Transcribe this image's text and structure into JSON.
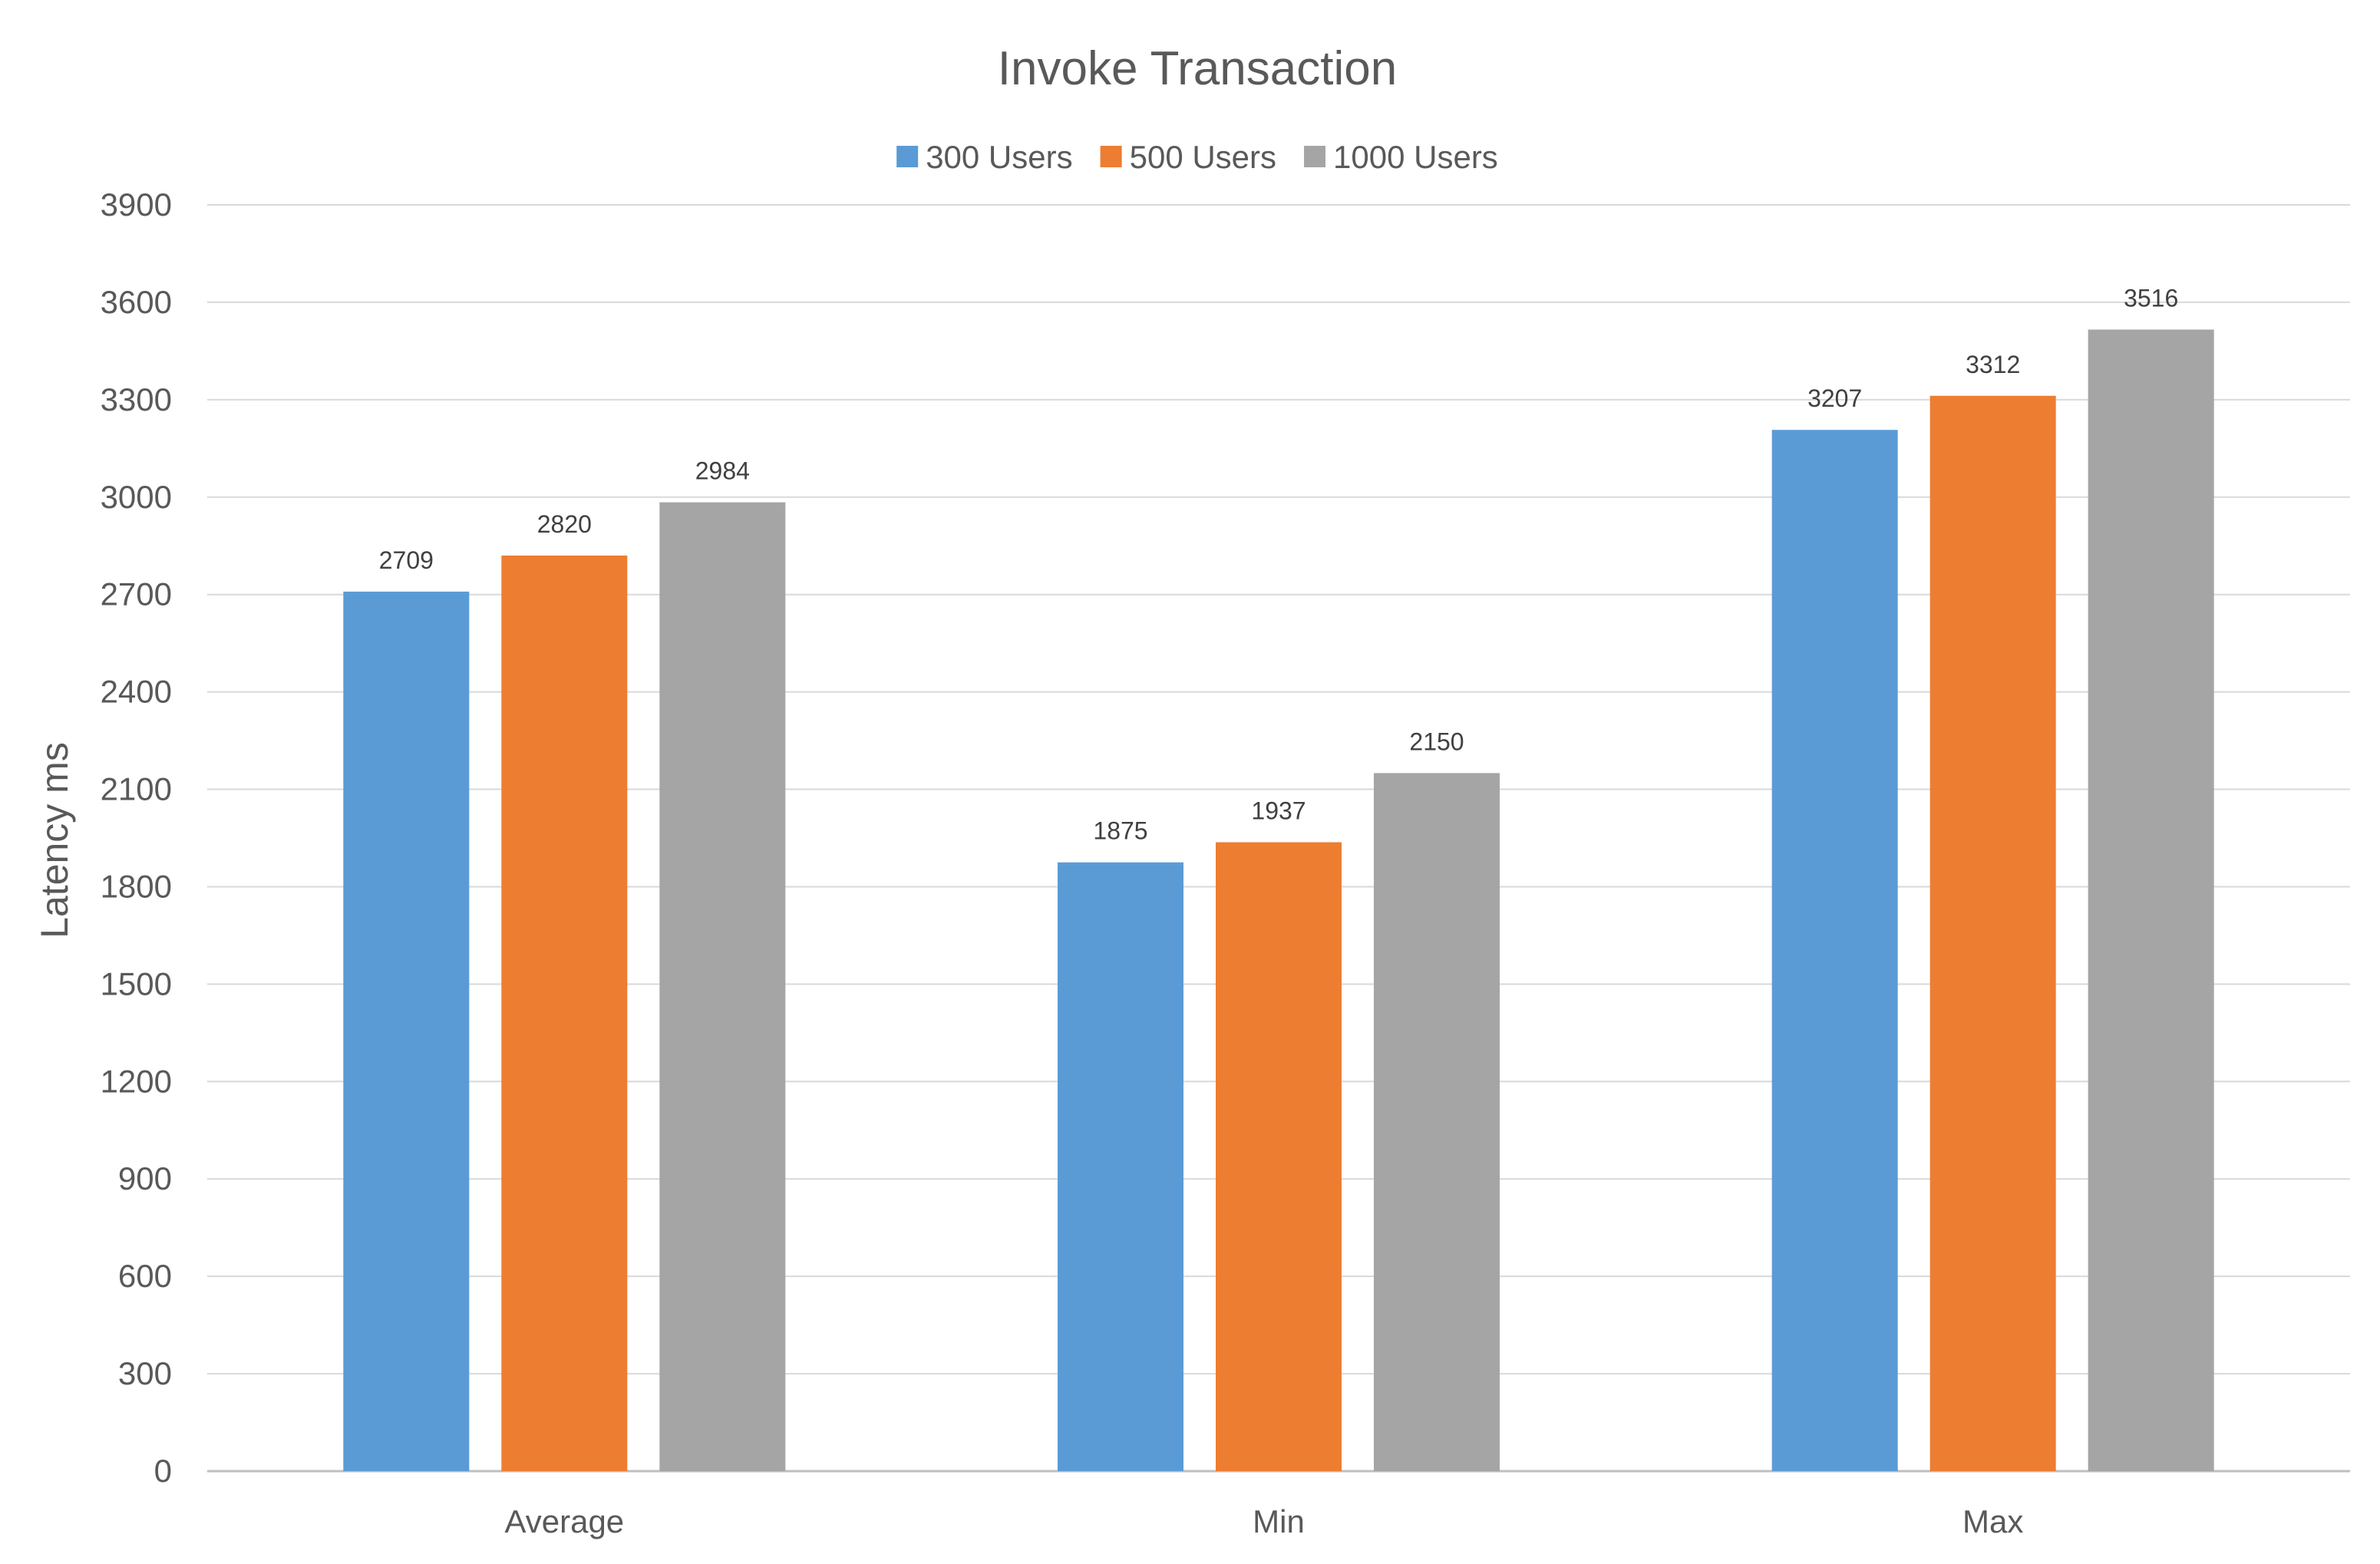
{
  "chart_data": {
    "type": "bar",
    "title": "Invoke Transaction",
    "xlabel": "",
    "ylabel": "Latency ms",
    "categories": [
      "Average",
      "Min",
      "Max"
    ],
    "series": [
      {
        "name": "300 Users",
        "color": "#5B9BD5",
        "values": [
          2709,
          1875,
          3207
        ]
      },
      {
        "name": "500 Users",
        "color": "#ED7D31",
        "values": [
          2820,
          1937,
          3312
        ]
      },
      {
        "name": "1000 Users",
        "color": "#A5A5A5",
        "values": [
          2984,
          2150,
          3516
        ]
      }
    ],
    "ylim": [
      0,
      3900
    ],
    "yticks": [
      0,
      300,
      600,
      900,
      1200,
      1500,
      1800,
      2100,
      2400,
      2700,
      3000,
      3300,
      3600,
      3900
    ],
    "grid": true,
    "legend_position": "top-center",
    "data_labels": true
  }
}
